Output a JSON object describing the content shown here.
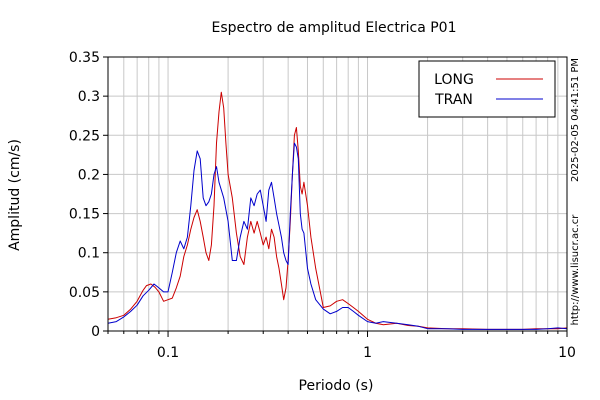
{
  "chart_data": {
    "type": "line",
    "title": "Espectro de amplitud Electrica P01",
    "xlabel": "Periodo (s)",
    "ylabel": "Amplitud (cm/s)",
    "x_scale": "log",
    "xlim": [
      0.05,
      10
    ],
    "ylim": [
      0,
      0.35
    ],
    "grid": true,
    "legend_position": "top-right",
    "x_ticks": [
      {
        "value": 0.1,
        "label": "0.1"
      },
      {
        "value": 1,
        "label": "1"
      },
      {
        "value": 10,
        "label": "10"
      }
    ],
    "y_ticks": [
      {
        "value": 0,
        "label": "0"
      },
      {
        "value": 0.05,
        "label": "0.05"
      },
      {
        "value": 0.1,
        "label": "0.1"
      },
      {
        "value": 0.15,
        "label": "0.15"
      },
      {
        "value": 0.2,
        "label": "0.2"
      },
      {
        "value": 0.25,
        "label": "0.25"
      },
      {
        "value": 0.3,
        "label": "0.3"
      },
      {
        "value": 0.35,
        "label": "0.35"
      }
    ],
    "series": [
      {
        "name": "LONG",
        "color": "#cc0000",
        "points": [
          [
            0.05,
            0.015
          ],
          [
            0.055,
            0.017
          ],
          [
            0.06,
            0.02
          ],
          [
            0.065,
            0.028
          ],
          [
            0.07,
            0.038
          ],
          [
            0.075,
            0.052
          ],
          [
            0.078,
            0.058
          ],
          [
            0.082,
            0.06
          ],
          [
            0.086,
            0.056
          ],
          [
            0.09,
            0.05
          ],
          [
            0.095,
            0.038
          ],
          [
            0.1,
            0.04
          ],
          [
            0.105,
            0.042
          ],
          [
            0.11,
            0.055
          ],
          [
            0.115,
            0.07
          ],
          [
            0.12,
            0.095
          ],
          [
            0.125,
            0.11
          ],
          [
            0.13,
            0.13
          ],
          [
            0.135,
            0.145
          ],
          [
            0.14,
            0.155
          ],
          [
            0.145,
            0.14
          ],
          [
            0.15,
            0.12
          ],
          [
            0.155,
            0.1
          ],
          [
            0.16,
            0.09
          ],
          [
            0.165,
            0.11
          ],
          [
            0.17,
            0.16
          ],
          [
            0.175,
            0.24
          ],
          [
            0.18,
            0.28
          ],
          [
            0.185,
            0.305
          ],
          [
            0.19,
            0.285
          ],
          [
            0.195,
            0.24
          ],
          [
            0.2,
            0.2
          ],
          [
            0.21,
            0.17
          ],
          [
            0.22,
            0.125
          ],
          [
            0.23,
            0.095
          ],
          [
            0.24,
            0.085
          ],
          [
            0.25,
            0.12
          ],
          [
            0.26,
            0.14
          ],
          [
            0.27,
            0.125
          ],
          [
            0.28,
            0.14
          ],
          [
            0.29,
            0.125
          ],
          [
            0.3,
            0.11
          ],
          [
            0.31,
            0.12
          ],
          [
            0.32,
            0.105
          ],
          [
            0.33,
            0.13
          ],
          [
            0.34,
            0.12
          ],
          [
            0.35,
            0.095
          ],
          [
            0.36,
            0.08
          ],
          [
            0.37,
            0.06
          ],
          [
            0.38,
            0.04
          ],
          [
            0.39,
            0.055
          ],
          [
            0.4,
            0.09
          ],
          [
            0.41,
            0.14
          ],
          [
            0.42,
            0.2
          ],
          [
            0.43,
            0.25
          ],
          [
            0.44,
            0.26
          ],
          [
            0.45,
            0.23
          ],
          [
            0.46,
            0.185
          ],
          [
            0.47,
            0.175
          ],
          [
            0.48,
            0.19
          ],
          [
            0.5,
            0.16
          ],
          [
            0.52,
            0.12
          ],
          [
            0.55,
            0.08
          ],
          [
            0.58,
            0.05
          ],
          [
            0.6,
            0.03
          ],
          [
            0.65,
            0.032
          ],
          [
            0.7,
            0.038
          ],
          [
            0.75,
            0.04
          ],
          [
            0.8,
            0.035
          ],
          [
            0.85,
            0.03
          ],
          [
            0.9,
            0.025
          ],
          [
            1.0,
            0.015
          ],
          [
            1.1,
            0.01
          ],
          [
            1.2,
            0.008
          ],
          [
            1.4,
            0.01
          ],
          [
            1.6,
            0.007
          ],
          [
            1.8,
            0.006
          ],
          [
            2.0,
            0.004
          ],
          [
            2.5,
            0.003
          ],
          [
            3,
            0.003
          ],
          [
            4,
            0.002
          ],
          [
            5,
            0.002
          ],
          [
            6,
            0.002
          ],
          [
            7,
            0.003
          ],
          [
            8,
            0.003
          ],
          [
            9,
            0.003
          ],
          [
            10,
            0.004
          ]
        ]
      },
      {
        "name": "TRAN",
        "color": "#0000cc",
        "points": [
          [
            0.05,
            0.01
          ],
          [
            0.055,
            0.012
          ],
          [
            0.06,
            0.018
          ],
          [
            0.065,
            0.025
          ],
          [
            0.07,
            0.033
          ],
          [
            0.075,
            0.045
          ],
          [
            0.08,
            0.052
          ],
          [
            0.085,
            0.06
          ],
          [
            0.09,
            0.055
          ],
          [
            0.095,
            0.05
          ],
          [
            0.1,
            0.05
          ],
          [
            0.105,
            0.075
          ],
          [
            0.11,
            0.1
          ],
          [
            0.115,
            0.115
          ],
          [
            0.12,
            0.105
          ],
          [
            0.125,
            0.12
          ],
          [
            0.13,
            0.16
          ],
          [
            0.135,
            0.205
          ],
          [
            0.14,
            0.23
          ],
          [
            0.145,
            0.22
          ],
          [
            0.15,
            0.17
          ],
          [
            0.155,
            0.16
          ],
          [
            0.16,
            0.165
          ],
          [
            0.165,
            0.175
          ],
          [
            0.17,
            0.2
          ],
          [
            0.175,
            0.21
          ],
          [
            0.18,
            0.19
          ],
          [
            0.19,
            0.17
          ],
          [
            0.2,
            0.14
          ],
          [
            0.21,
            0.09
          ],
          [
            0.22,
            0.09
          ],
          [
            0.23,
            0.12
          ],
          [
            0.24,
            0.14
          ],
          [
            0.25,
            0.13
          ],
          [
            0.26,
            0.17
          ],
          [
            0.27,
            0.16
          ],
          [
            0.28,
            0.175
          ],
          [
            0.29,
            0.18
          ],
          [
            0.3,
            0.16
          ],
          [
            0.31,
            0.14
          ],
          [
            0.32,
            0.18
          ],
          [
            0.33,
            0.19
          ],
          [
            0.34,
            0.17
          ],
          [
            0.35,
            0.15
          ],
          [
            0.36,
            0.135
          ],
          [
            0.37,
            0.12
          ],
          [
            0.38,
            0.1
          ],
          [
            0.39,
            0.09
          ],
          [
            0.4,
            0.085
          ],
          [
            0.41,
            0.15
          ],
          [
            0.42,
            0.2
          ],
          [
            0.43,
            0.24
          ],
          [
            0.44,
            0.235
          ],
          [
            0.45,
            0.22
          ],
          [
            0.46,
            0.15
          ],
          [
            0.47,
            0.13
          ],
          [
            0.48,
            0.125
          ],
          [
            0.5,
            0.08
          ],
          [
            0.52,
            0.06
          ],
          [
            0.55,
            0.04
          ],
          [
            0.6,
            0.028
          ],
          [
            0.65,
            0.022
          ],
          [
            0.7,
            0.025
          ],
          [
            0.75,
            0.03
          ],
          [
            0.8,
            0.03
          ],
          [
            0.85,
            0.025
          ],
          [
            0.9,
            0.02
          ],
          [
            1.0,
            0.012
          ],
          [
            1.1,
            0.01
          ],
          [
            1.2,
            0.012
          ],
          [
            1.4,
            0.01
          ],
          [
            1.6,
            0.008
          ],
          [
            1.8,
            0.006
          ],
          [
            2.0,
            0.003
          ],
          [
            2.5,
            0.003
          ],
          [
            3,
            0.002
          ],
          [
            4,
            0.002
          ],
          [
            5,
            0.002
          ],
          [
            6,
            0.002
          ],
          [
            7,
            0.002
          ],
          [
            8,
            0.003
          ],
          [
            9,
            0.004
          ],
          [
            10,
            0.003
          ]
        ]
      }
    ]
  },
  "side_text": {
    "timestamp": "2025-02-05 04:41:51 PM",
    "url": "http://www.lisucr.ac.cr"
  }
}
